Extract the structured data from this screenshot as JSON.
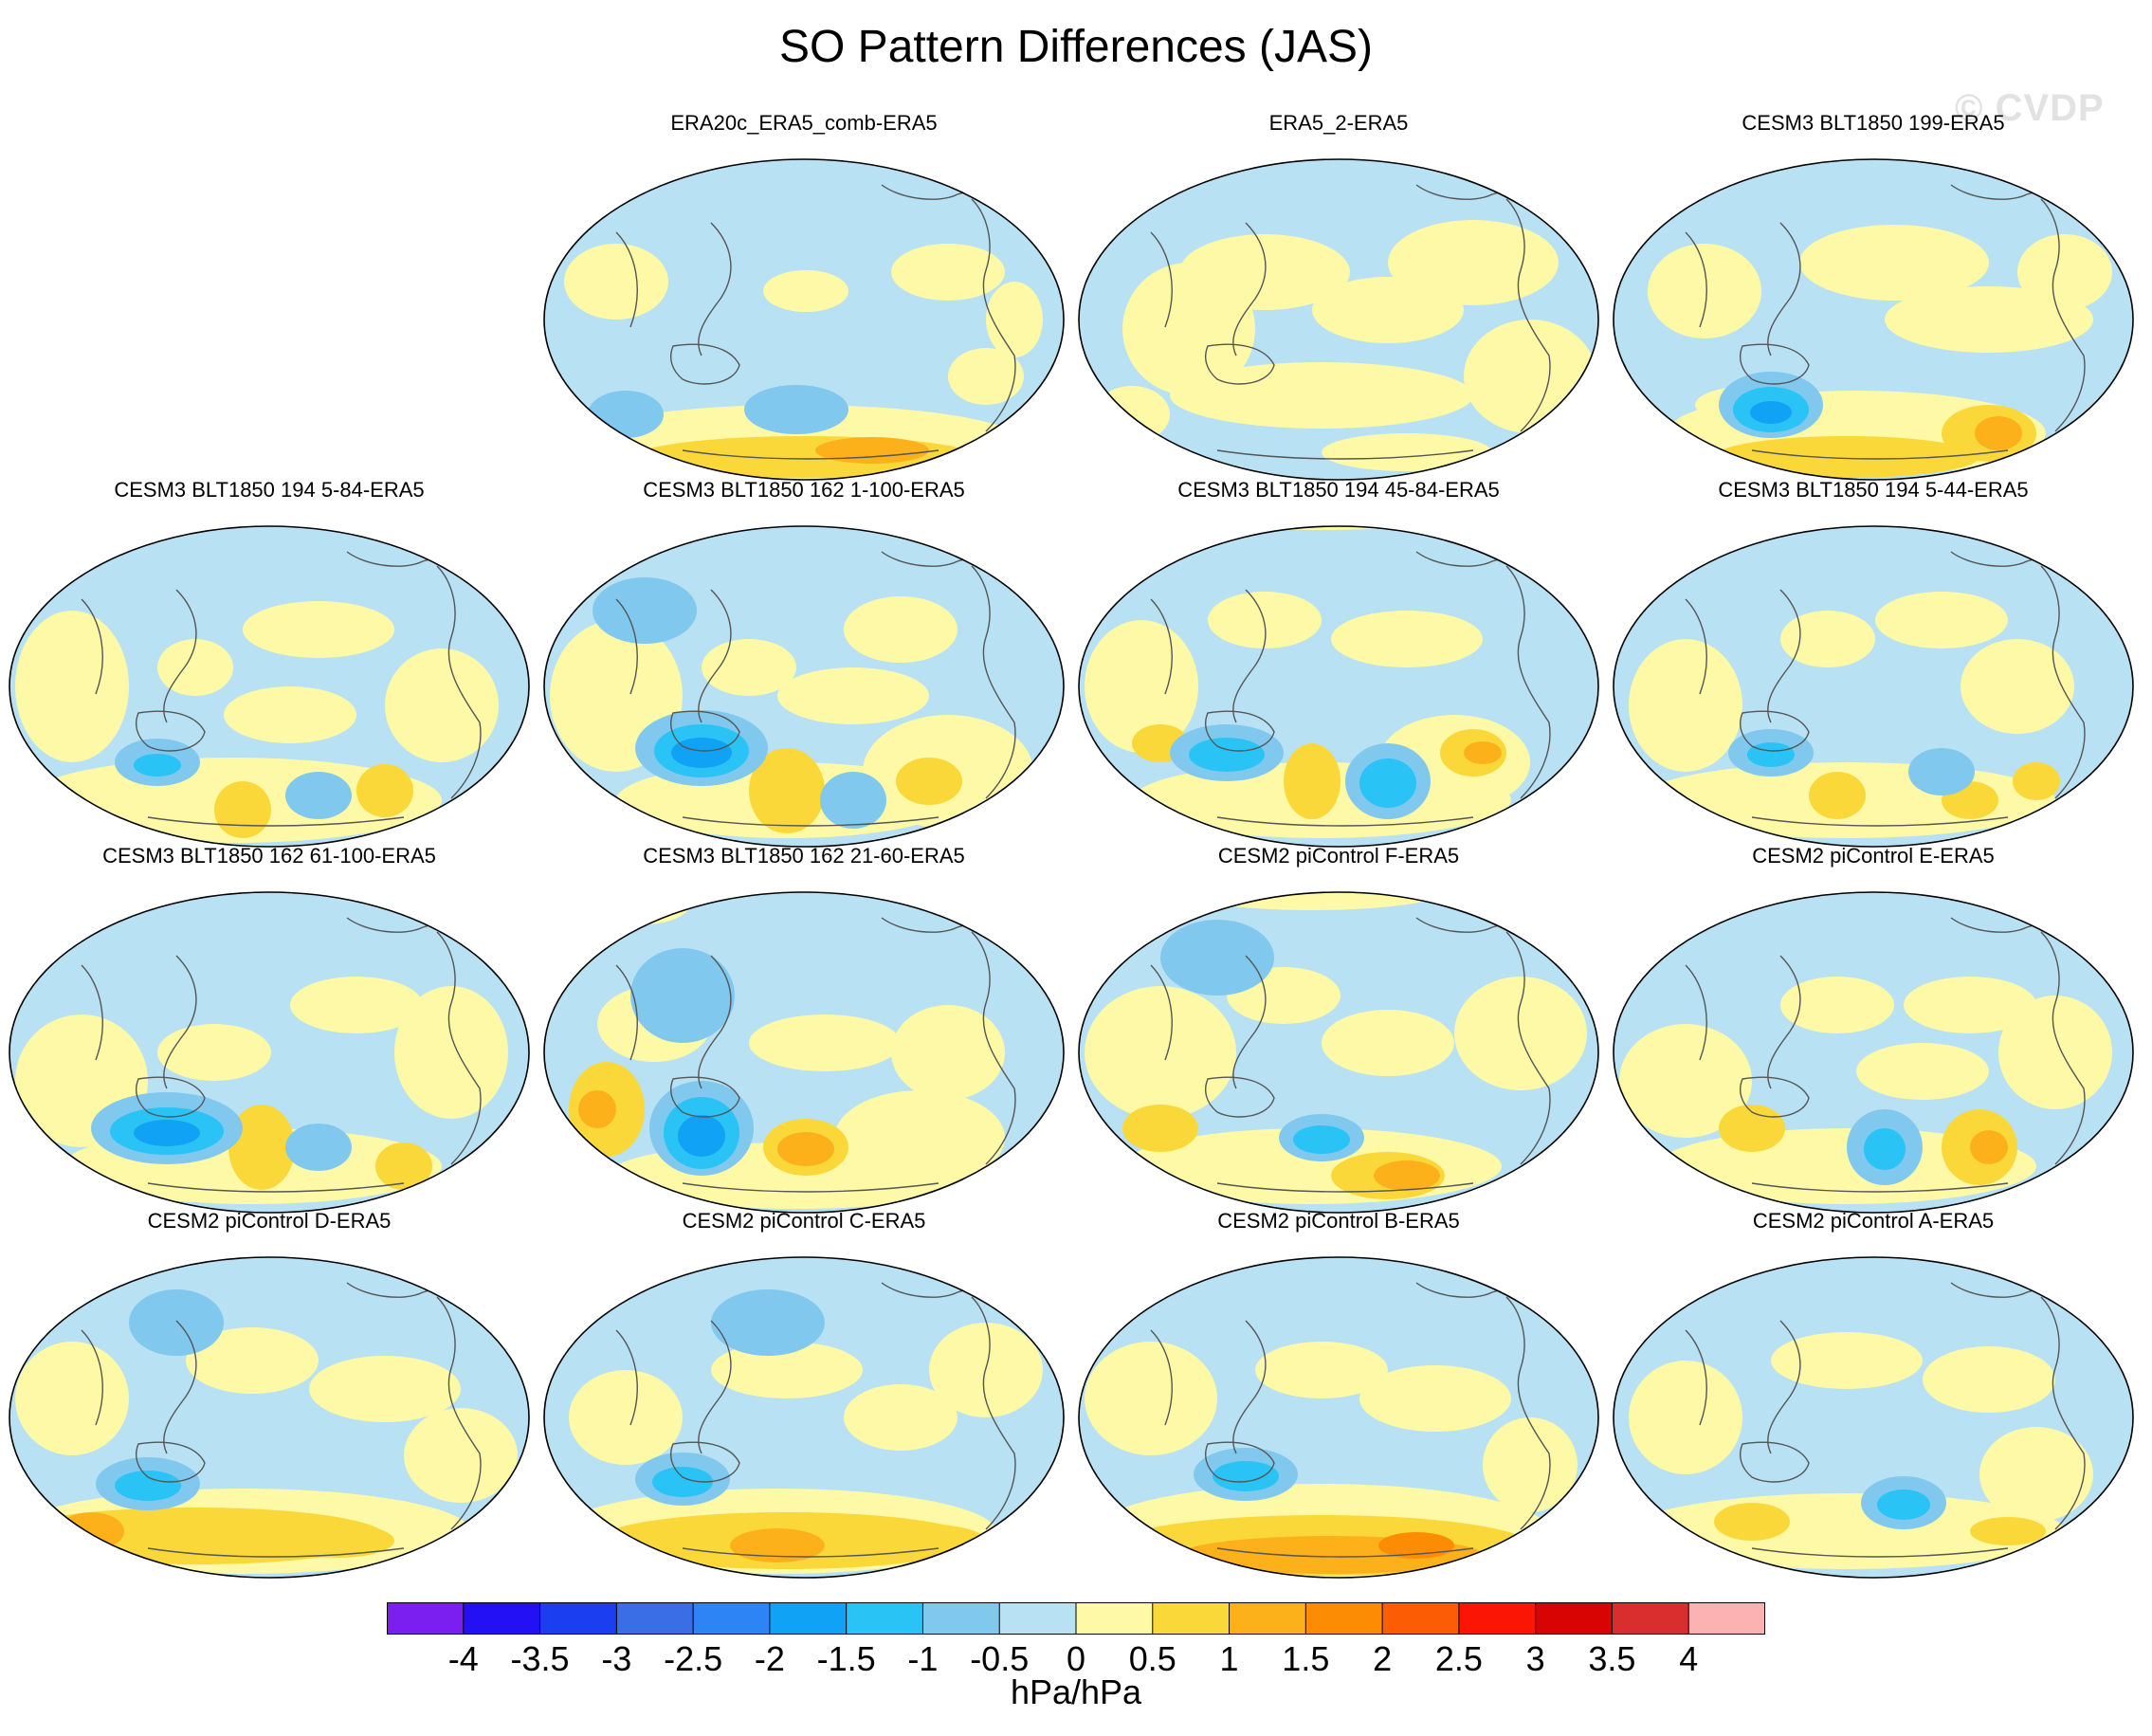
{
  "title": "SO Pattern Differences (JAS)",
  "watermark": "© CVDP",
  "colorbar": {
    "units": "hPa/hPa",
    "tick_labels": [
      "-4",
      "-3.5",
      "-3",
      "-2.5",
      "-2",
      "-1.5",
      "-1",
      "-0.5",
      "0",
      "0.5",
      "1",
      "1.5",
      "2",
      "2.5",
      "3",
      "3.5",
      "4"
    ],
    "colors": [
      "#7b1ff0",
      "#2410f5",
      "#1b3ff0",
      "#3a6ee6",
      "#2d84f5",
      "#10a2f5",
      "#29c3f5",
      "#81c8ee",
      "#b8e1f3",
      "#fef9a6",
      "#fad83a",
      "#fcb11b",
      "#fc8c04",
      "#fc5d04",
      "#fa1504",
      "#d80404",
      "#d92e2e",
      "#fcb2b2"
    ]
  },
  "panels": [
    {
      "title": "ERA20c_ERA5_comb-ERA5",
      "pattern": 0
    },
    {
      "title": "ERA5_2-ERA5",
      "pattern": 1
    },
    {
      "title": "CESM3 BLT1850 199-ERA5",
      "pattern": 2
    },
    {
      "title": "CESM3 BLT1850 194 5-84-ERA5",
      "pattern": 3
    },
    {
      "title": "CESM3 BLT1850 162 1-100-ERA5",
      "pattern": 4
    },
    {
      "title": "CESM3 BLT1850 194 45-84-ERA5",
      "pattern": 5
    },
    {
      "title": "CESM3 BLT1850 194 5-44-ERA5",
      "pattern": 6
    },
    {
      "title": "CESM3 BLT1850 162 61-100-ERA5",
      "pattern": 7
    },
    {
      "title": "CESM3 BLT1850 162 21-60-ERA5",
      "pattern": 8
    },
    {
      "title": "CESM2 piControl F-ERA5",
      "pattern": 9
    },
    {
      "title": "CESM2 piControl E-ERA5",
      "pattern": 10
    },
    {
      "title": "CESM2 piControl D-ERA5",
      "pattern": 11
    },
    {
      "title": "CESM2 piControl C-ERA5",
      "pattern": 12
    },
    {
      "title": "CESM2 piControl B-ERA5",
      "pattern": 13
    },
    {
      "title": "CESM2 piControl A-ERA5",
      "pattern": 14
    }
  ]
}
